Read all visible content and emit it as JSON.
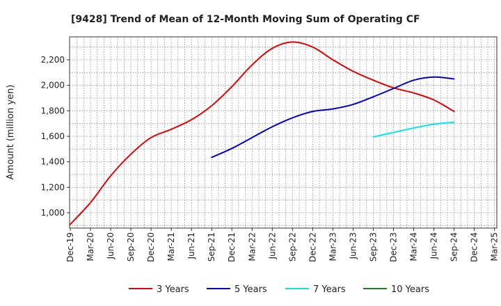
{
  "chart_data": {
    "type": "line",
    "title": "[9428]  Trend of Mean of 12-Month Moving Sum of Operating CF",
    "xlabel": "",
    "ylabel": "Amount (million yen)",
    "ylim": [
      880,
      2380
    ],
    "yticks": [
      1000,
      1200,
      1400,
      1600,
      1800,
      2000,
      2200
    ],
    "ytick_labels": [
      "1,000",
      "1,200",
      "1,400",
      "1,600",
      "1,800",
      "2,000",
      "2,200"
    ],
    "xtick_labels": [
      "Dec-19",
      "Mar-20",
      "Jun-20",
      "Sep-20",
      "Dec-20",
      "Mar-21",
      "Jun-21",
      "Sep-21",
      "Dec-21",
      "Mar-22",
      "Jun-22",
      "Sep-22",
      "Dec-22",
      "Mar-23",
      "Jun-23",
      "Sep-23",
      "Dec-23",
      "Mar-24",
      "Jun-24",
      "Sep-24",
      "Dec-24",
      "Mar-25"
    ],
    "grid": true,
    "legend_position": "bottom",
    "series": [
      {
        "name": "3 Years",
        "color": "#e00000",
        "points": [
          [
            0,
            910
          ],
          [
            1,
            1080
          ],
          [
            2,
            1290
          ],
          [
            3,
            1460
          ],
          [
            4,
            1590
          ],
          [
            5,
            1655
          ],
          [
            6,
            1730
          ],
          [
            7,
            1840
          ],
          [
            8,
            1990
          ],
          [
            9,
            2160
          ],
          [
            10,
            2290
          ],
          [
            11,
            2340
          ],
          [
            12,
            2300
          ],
          [
            13,
            2200
          ],
          [
            14,
            2110
          ],
          [
            15,
            2040
          ],
          [
            16,
            1980
          ],
          [
            17,
            1940
          ],
          [
            18,
            1885
          ],
          [
            19,
            1795
          ]
        ]
      },
      {
        "name": "5 Years",
        "color": "#0000cc",
        "points": [
          [
            7,
            1435
          ],
          [
            8,
            1505
          ],
          [
            9,
            1590
          ],
          [
            10,
            1675
          ],
          [
            11,
            1745
          ],
          [
            12,
            1795
          ],
          [
            13,
            1815
          ],
          [
            14,
            1850
          ],
          [
            15,
            1910
          ],
          [
            16,
            1975
          ],
          [
            17,
            2040
          ],
          [
            18,
            2065
          ],
          [
            19,
            2050
          ]
        ]
      },
      {
        "name": "7 Years",
        "color": "#00e5ee",
        "points": [
          [
            15,
            1595
          ],
          [
            16,
            1630
          ],
          [
            17,
            1665
          ],
          [
            18,
            1695
          ],
          [
            19,
            1710
          ]
        ]
      },
      {
        "name": "10 Years",
        "color": "#118811",
        "points": []
      }
    ]
  }
}
